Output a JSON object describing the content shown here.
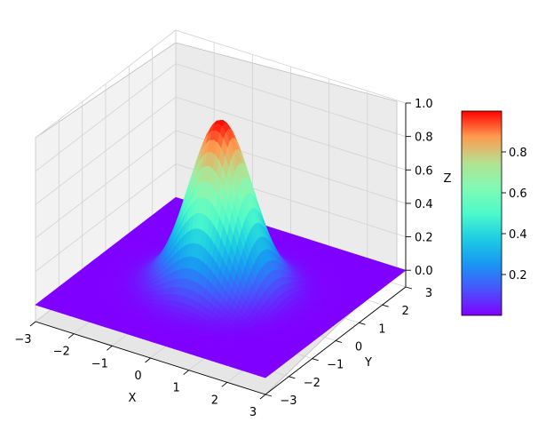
{
  "chart_data": {
    "type": "surface",
    "function": "Z = exp(-(X^2 + Y^2))",
    "colormap": "rainbow",
    "x": {
      "label": "X",
      "range": [
        -3,
        3
      ],
      "ticks": [
        -3,
        -2,
        -1,
        0,
        1,
        2,
        3
      ],
      "tick_labels": [
        "−3",
        "−2",
        "−1",
        "0",
        "1",
        "2",
        "3"
      ]
    },
    "y": {
      "label": "Y",
      "range": [
        -3,
        3
      ],
      "ticks": [
        -3,
        -2,
        -1,
        0,
        1,
        2,
        3
      ],
      "tick_labels": [
        "−3",
        "−2",
        "−1",
        "0",
        "1",
        "2",
        "3"
      ]
    },
    "z": {
      "label": "Z",
      "range": [
        -0.1,
        1.0
      ],
      "ticks": [
        0.0,
        0.2,
        0.4,
        0.6,
        0.8,
        1.0
      ],
      "tick_labels": [
        "0.0",
        "0.2",
        "0.4",
        "0.6",
        "0.8",
        "1.0"
      ]
    },
    "colorbar": {
      "range": [
        0,
        1
      ],
      "ticks": [
        0.2,
        0.4,
        0.6,
        0.8
      ],
      "tick_labels": [
        "0.2",
        "0.4",
        "0.6",
        "0.8"
      ]
    },
    "grid": true
  }
}
